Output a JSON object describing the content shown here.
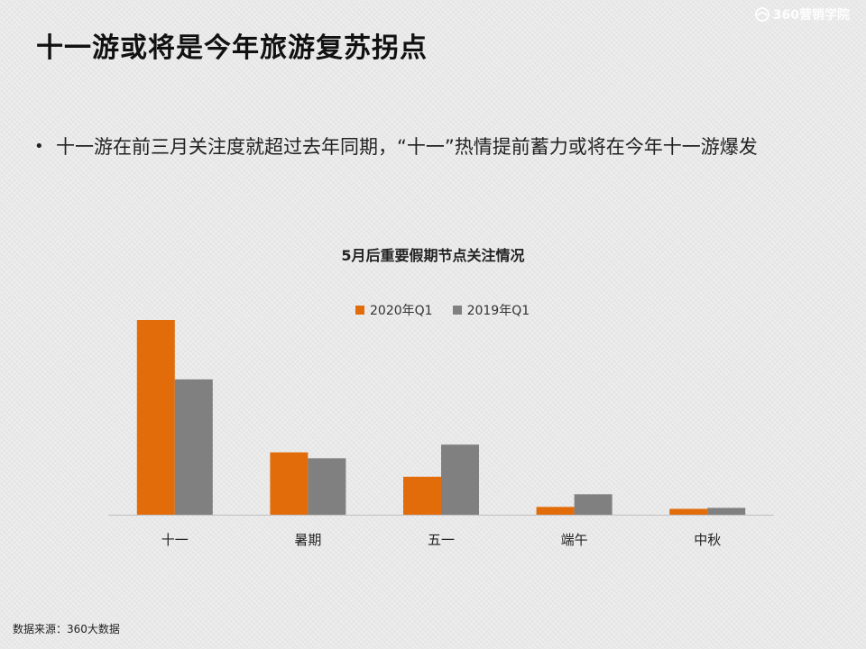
{
  "page": {
    "title": "十一游或将是今年旅游复苏拐点",
    "brand_text": "360营销学院",
    "bullet": "十一游在前三月关注度就超过去年同期，“十一”热情提前蓄力或将在今年十一游爆发",
    "source": "数据来源：360大数据"
  },
  "colors": {
    "orange": "#e36c0a",
    "gray": "#808080",
    "axis": "#bfbfbf"
  },
  "chart_data": {
    "type": "bar",
    "title": "5月后重要假期节点关注情况",
    "categories": [
      "十一",
      "暑期",
      "五一",
      "端午",
      "中秋"
    ],
    "series": [
      {
        "name": "2020年Q1",
        "color": "#e36c0a",
        "values": [
          100,
          32,
          19.5,
          4,
          3
        ]
      },
      {
        "name": "2019年Q1",
        "color": "#808080",
        "values": [
          69.5,
          29,
          36,
          10.5,
          3.5
        ]
      }
    ],
    "ylim": [
      0,
      100
    ],
    "grid": false,
    "legend": "top"
  }
}
